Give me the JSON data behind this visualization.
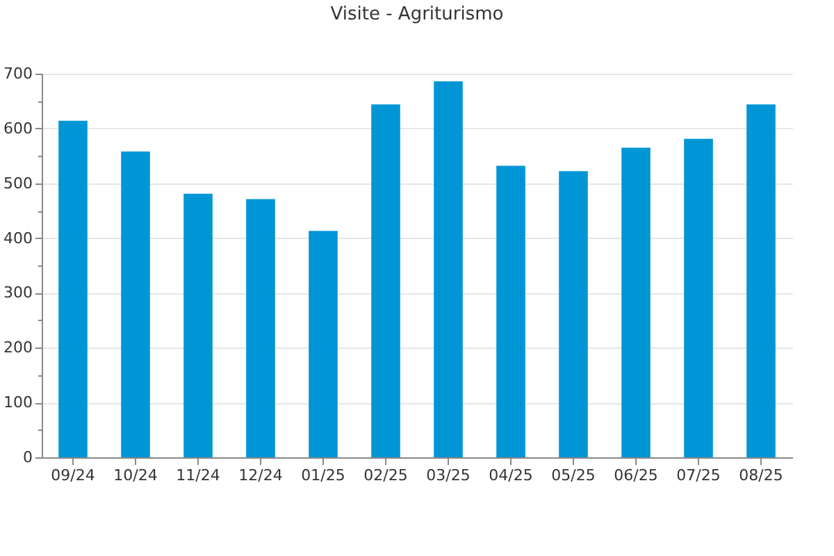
{
  "chart_data": {
    "type": "bar",
    "title": "Visite - Agriturismo",
    "categories": [
      "09/24",
      "10/24",
      "11/24",
      "12/24",
      "01/25",
      "02/25",
      "03/25",
      "04/25",
      "05/25",
      "06/25",
      "07/25",
      "08/25"
    ],
    "values": [
      614,
      558,
      481,
      471,
      413,
      644,
      686,
      532,
      522,
      565,
      581,
      644
    ],
    "color": "#0096d6",
    "ylim": [
      0,
      700
    ],
    "yticks": [
      0,
      {
        "value": 50,
        "label": null
      },
      100,
      {
        "value": 150,
        "label": null
      },
      200,
      {
        "value": 250,
        "label": null
      },
      300,
      {
        "value": 350,
        "label": null
      },
      400,
      {
        "value": 450,
        "label": null
      },
      500,
      {
        "value": 550,
        "label": null
      },
      600,
      {
        "value": 650,
        "label": null
      },
      700
    ],
    "grid": "y"
  }
}
